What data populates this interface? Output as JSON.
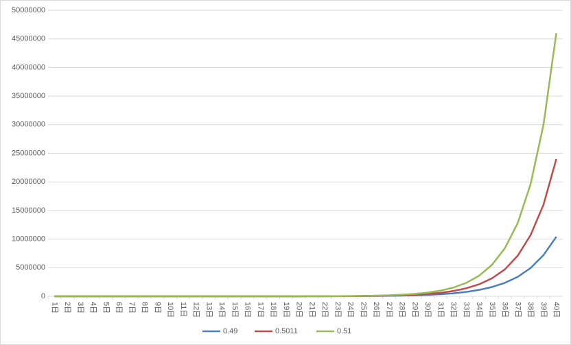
{
  "chart_data": {
    "type": "line",
    "categories": [
      "1日",
      "2日",
      "3日",
      "4日",
      "5日",
      "6日",
      "7日",
      "8日",
      "9日",
      "10日",
      "11日",
      "12日",
      "13日",
      "14日",
      "15日",
      "16日",
      "17日",
      "18日",
      "19日",
      "20日",
      "21日",
      "22日",
      "23日",
      "24日",
      "25日",
      "26日",
      "27日",
      "28日",
      "29日",
      "30日",
      "31日",
      "32日",
      "33日",
      "34日",
      "35日",
      "36日",
      "37日",
      "38日",
      "39日",
      "40日"
    ],
    "series": [
      {
        "name": "0.49",
        "color": "#4a7ebb",
        "values": [
          5,
          8,
          11,
          16,
          23,
          33,
          48,
          70,
          102,
          148,
          215,
          312,
          452,
          655,
          950,
          1380,
          2000,
          2900,
          4200,
          6100,
          8900,
          12900,
          18700,
          27000,
          39000,
          57000,
          83000,
          120000,
          174000,
          252000,
          366000,
          530000,
          770000,
          1120000,
          1620000,
          2350000,
          3400000,
          4950000,
          7200000,
          10400000
        ]
      },
      {
        "name": "0.5011",
        "color": "#be4b48",
        "values": [
          3,
          5,
          7,
          11,
          16,
          24,
          36,
          55,
          82,
          123,
          184,
          276,
          415,
          620,
          930,
          1400,
          2100,
          3150,
          4700,
          7100,
          10700,
          16000,
          24000,
          36000,
          55000,
          82000,
          123000,
          184000,
          276000,
          415000,
          620000,
          930000,
          1400000,
          2100000,
          3150000,
          4700000,
          7100000,
          10700000,
          16000000,
          24000000
        ]
      },
      {
        "name": "0.51",
        "color": "#98b954",
        "values": [
          3,
          4,
          7,
          10,
          15,
          24,
          36,
          55,
          85,
          130,
          198,
          304,
          465,
          710,
          1090,
          1670,
          2550,
          3900,
          6000,
          9200,
          14000,
          21500,
          33000,
          50000,
          77000,
          120000,
          180000,
          280000,
          425000,
          650000,
          1000000,
          1530000,
          2350000,
          3600000,
          5500000,
          8400000,
          12800000,
          19600000,
          30000000,
          46000000
        ]
      }
    ],
    "ylim": [
      0,
      50000000
    ],
    "yticks": [
      0,
      5000000,
      10000000,
      15000000,
      20000000,
      25000000,
      30000000,
      35000000,
      40000000,
      45000000,
      50000000
    ],
    "grid": true,
    "legend": "bottom"
  }
}
